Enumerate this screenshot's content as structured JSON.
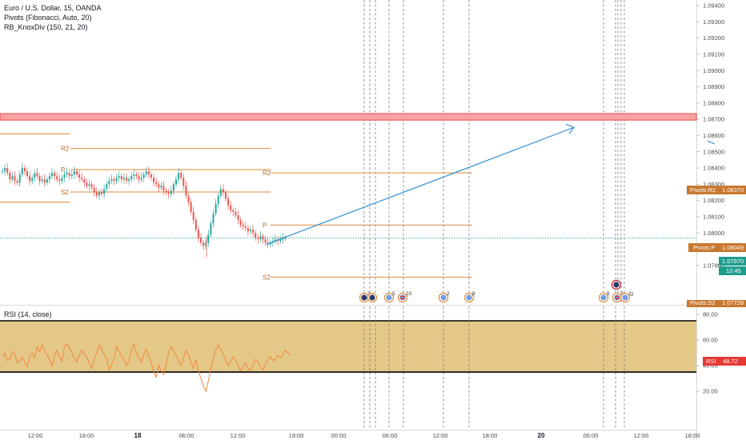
{
  "legend": {
    "symbol_title": "Euro / U.S. Dollar, 15, OANDA",
    "pivots_title": "Pivots (Fibonacci, Auto, 20)",
    "knox_title": "RB_KnoxDiv (150, 21, 20)",
    "rsi_title": "RSI (14, close)"
  },
  "colors": {
    "bull": "#26a69a",
    "bear": "#ef5350",
    "pivot": "#e08a3a",
    "pivot_tag": "#c8782f",
    "zone_fill": "#f9a3a3",
    "zone_border": "#e24848",
    "trend": "#2f8fd1",
    "price_tag": "#1e9e8e",
    "rsi_line": "#f0883e",
    "rsi_band": "#e4c888",
    "rsi_tag": "#e53935"
  },
  "price_axis": {
    "ticks": [
      "1.09400",
      "1.09300",
      "1.09200",
      "1.09100",
      "1.09000",
      "1.08900",
      "1.08800",
      "1.08700",
      "1.08600",
      "1.08500",
      "1.08400",
      "1.08300",
      "1.08200",
      "1.08100",
      "1.08000",
      "1.07900",
      "1.07800"
    ],
    "tags": {
      "r2": {
        "label": "Pivots:R2",
        "value": "1.08370"
      },
      "p": {
        "label": "Pivots:P",
        "value": "1.08049"
      },
      "s2": {
        "label": "Pivots:S2",
        "value": "1.07728"
      },
      "last": {
        "value": "1.07970"
      },
      "countdown": {
        "value": "12:45"
      }
    }
  },
  "pivots": {
    "levels": [
      {
        "name": "R2",
        "value": 1.0852
      },
      {
        "name": "P",
        "value": 1.0839
      },
      {
        "name": "S2",
        "value": 1.08252
      },
      {
        "name": "R2",
        "value": 1.0837
      },
      {
        "name": "P",
        "value": 1.08049
      },
      {
        "name": "S2",
        "value": 1.07728
      }
    ],
    "old_lines": [
      1.0861,
      1.0819
    ]
  },
  "zone": {
    "from": 1.08695,
    "to": 1.08735
  },
  "trend": {
    "from": 1.0793,
    "to": 1.0865
  },
  "events": {
    "counts": [
      "2",
      "5",
      "10",
      "2",
      "8",
      "9",
      "2",
      "2",
      "2"
    ]
  },
  "rsi": {
    "ticks": [
      "80.00",
      "60.00",
      "40.00",
      "20.00"
    ],
    "band": [
      35,
      75
    ],
    "current": "48.72",
    "tag_label": "RSI",
    "values": [
      47,
      50,
      44,
      45,
      51,
      49,
      42,
      44,
      47,
      43,
      39,
      47,
      50,
      46,
      55,
      51,
      56,
      52,
      48,
      45,
      40,
      48,
      52,
      47,
      43,
      55,
      57,
      54,
      50,
      46,
      43,
      48,
      52,
      49,
      47,
      42,
      38,
      45,
      50,
      56,
      53,
      49,
      45,
      37,
      41,
      46,
      55,
      51,
      48,
      45,
      40,
      44,
      52,
      57,
      50,
      46,
      43,
      49,
      53,
      47,
      42,
      35,
      31,
      40,
      36,
      33,
      41,
      50,
      55,
      51,
      48,
      44,
      40,
      46,
      52,
      48,
      43,
      38,
      45,
      36,
      30,
      24,
      20,
      28,
      38,
      46,
      52,
      56,
      53,
      49,
      44,
      40,
      43,
      47,
      44,
      40,
      36,
      39,
      42,
      38,
      36,
      40,
      45,
      43,
      39,
      37,
      41,
      45,
      47,
      44,
      45,
      48,
      46,
      49,
      52,
      50,
      48
    ]
  },
  "price": {
    "values": [
      1.0838,
      1.084,
      1.0837,
      1.0833,
      1.0835,
      1.0832,
      1.0831,
      1.0836,
      1.084,
      1.0838,
      1.0835,
      1.0832,
      1.0834,
      1.0837,
      1.0835,
      1.0832,
      1.0833,
      1.0831,
      1.0833,
      1.0835,
      1.0837,
      1.0835,
      1.0833,
      1.0832,
      1.0834,
      1.0836,
      1.0837,
      1.0835,
      1.0836,
      1.0838,
      1.0836,
      1.0834,
      1.0833,
      1.0831,
      1.0829,
      1.083,
      1.0828,
      1.0825,
      1.0823,
      1.0825,
      1.0824,
      1.0827,
      1.083,
      1.0832,
      1.0833,
      1.0832,
      1.0834,
      1.0835,
      1.0833,
      1.0834,
      1.0832,
      1.0833,
      1.0835,
      1.0836,
      1.0835,
      1.0833,
      1.0834,
      1.0836,
      1.0838,
      1.0836,
      1.0834,
      1.0831,
      1.083,
      1.0828,
      1.0829,
      1.0826,
      1.0825,
      1.0824,
      1.0826,
      1.083,
      1.0833,
      1.0837,
      1.0834,
      1.0829,
      1.0823,
      1.0819,
      1.0813,
      1.0808,
      1.0802,
      1.0797,
      1.0794,
      1.0792,
      1.0794,
      1.0799,
      1.0806,
      1.0812,
      1.0818,
      1.0823,
      1.0827,
      1.0825,
      1.0821,
      1.0817,
      1.0814,
      1.0813,
      1.0811,
      1.0808,
      1.0805,
      1.0804,
      1.0803,
      1.0801,
      1.0802,
      1.08,
      1.0797,
      1.0796,
      1.0798,
      1.0796,
      1.0794,
      1.0793,
      1.0794,
      1.0795,
      1.0796,
      1.0795,
      1.0796,
      1.0797,
      1.0797
    ]
  },
  "time_axis": {
    "labels": [
      "12:00",
      "18:00",
      "18",
      "06:00",
      "12:00",
      "19:00",
      "00:00",
      "06:00",
      "12:00",
      "18:00",
      "20",
      "06:00",
      "12:00",
      "18:00"
    ],
    "bold": [
      2,
      10
    ]
  }
}
